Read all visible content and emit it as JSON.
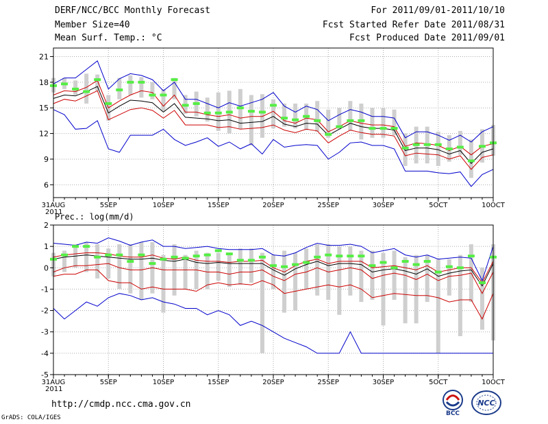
{
  "header": {
    "title": "DERF/NCC/BCC Monthly Forecast",
    "member_size": "Member Size=40",
    "variable": "Mean Surf. Temp.: °C",
    "forecast_for": "For 2011/09/01-2011/10/10",
    "started": "Fcst Started Refer Date 2011/08/31",
    "produced": "Fcst Produced Date 2011/09/01"
  },
  "footer": {
    "url": "http://cmdp.ncc.cma.gov.cn",
    "grads": "GrADS: COLA/IGES",
    "logo1_text": "BCC",
    "logo2_text": "NCC"
  },
  "chart_data": [
    {
      "type": "line",
      "title": "Mean Surf. Temp.: °C",
      "xlabel": "",
      "ylabel": "",
      "ylim": [
        4.5,
        22
      ],
      "yticks": [
        6,
        9,
        12,
        15,
        18,
        21
      ],
      "xlim": [
        0,
        40
      ],
      "x_tick_positions": [
        0,
        5,
        10,
        15,
        20,
        25,
        30,
        35,
        40
      ],
      "x_tick_labels": [
        "31AUG",
        "5SEP",
        "10SEP",
        "15SEP",
        "20SEP",
        "25SEP",
        "30SEP",
        "5OCT",
        "10OCT"
      ],
      "x_tick_sublabel": "2011",
      "series": [
        {
          "name": "max",
          "color": "#0000cc",
          "values": [
            17.8,
            18.5,
            18.5,
            19.5,
            20.5,
            17.2,
            18.4,
            19,
            18.8,
            18.3,
            17,
            18,
            16,
            16,
            15.5,
            15,
            15.6,
            15.2,
            15.6,
            16,
            16.8,
            15.2,
            14.5,
            15.2,
            14.8,
            13.5,
            14.2,
            14.8,
            14.5,
            14,
            14,
            13.8,
            11.5,
            12.2,
            12.2,
            11.8,
            11.2,
            11.8,
            11,
            12.2,
            12.8
          ]
        },
        {
          "name": "upper",
          "color": "#cc0000",
          "values": [
            16.5,
            17,
            16.9,
            17.4,
            18.2,
            15,
            15.8,
            16.5,
            17,
            16.8,
            15.2,
            16.5,
            14.5,
            14.5,
            14.2,
            14,
            14.2,
            13.8,
            14,
            14,
            14.6,
            13.5,
            13.2,
            13.8,
            13.6,
            12.2,
            12.8,
            13.5,
            13.2,
            13,
            13,
            12.8,
            10.5,
            10.9,
            10.8,
            10.6,
            10,
            10.5,
            9.5,
            10.5,
            10.8
          ]
        },
        {
          "name": "mean",
          "color": "#000000",
          "values": [
            16.1,
            16.5,
            16.4,
            16.9,
            17.5,
            14.4,
            15.2,
            15.9,
            15.8,
            15.6,
            14.5,
            15.5,
            13.9,
            13.8,
            13.7,
            13.5,
            13.6,
            13.2,
            13.3,
            13.4,
            14,
            13.1,
            12.8,
            13.2,
            13.1,
            11.8,
            12.5,
            13.2,
            12.8,
            12.6,
            12.6,
            12.4,
            10,
            10.3,
            10.3,
            10.1,
            9.6,
            10,
            8.5,
            9.8,
            10.2
          ]
        },
        {
          "name": "lower",
          "color": "#cc0000",
          "values": [
            15.5,
            16,
            15.8,
            16.4,
            17,
            13.6,
            14.2,
            14.8,
            15,
            14.7,
            13.8,
            14.7,
            13,
            13,
            13,
            12.7,
            12.8,
            12.5,
            12.6,
            12.7,
            13,
            12.4,
            12.1,
            12.5,
            12.3,
            10.9,
            11.7,
            12.4,
            12.1,
            11.9,
            11.9,
            11.7,
            9.4,
            9.7,
            9.6,
            9.5,
            9,
            9.4,
            7.8,
            9.2,
            9.5
          ]
        },
        {
          "name": "min",
          "color": "#0000cc",
          "values": [
            14.8,
            14.2,
            12.5,
            12.6,
            13.5,
            10.2,
            9.8,
            11.8,
            11.8,
            11.8,
            12.5,
            11.3,
            10.6,
            11,
            11.5,
            10.5,
            11,
            10.2,
            10.8,
            9.6,
            11.3,
            10.4,
            10.6,
            10.7,
            10.6,
            9,
            9.8,
            10.9,
            11,
            10.6,
            10.6,
            10.2,
            7.6,
            7.6,
            7.6,
            7.4,
            7.3,
            7.5,
            5.8,
            7.2,
            7.8
          ]
        }
      ],
      "ensemble_box_low": [
        16.8,
        17.2,
        16.5,
        15.5,
        17,
        13.5,
        16,
        16.5,
        16.2,
        16,
        14.6,
        16,
        14.3,
        14,
        13.4,
        12.3,
        12,
        12.5,
        10.6,
        11.5,
        12.6,
        12.8,
        12.6,
        12.4,
        12.2,
        11.5,
        12.5,
        12.3,
        11.3,
        11.5,
        11.5,
        11.8,
        8.2,
        8.5,
        8.5,
        8.2,
        8.7,
        9.5,
        6.8,
        8.6,
        9.4
      ],
      "ensemble_box_high": [
        18.5,
        18.5,
        18.2,
        19,
        18.9,
        16.5,
        18.5,
        18.8,
        18.6,
        18,
        17.2,
        18.5,
        16.5,
        16.9,
        16.2,
        16.8,
        17,
        17.2,
        16.5,
        16.6,
        16,
        15.5,
        15.5,
        15.5,
        15.8,
        14.8,
        15,
        15.8,
        15.5,
        15,
        15,
        14.8,
        12,
        12.8,
        12.8,
        12.2,
        11.8,
        12.3,
        11.3,
        12.5,
        13
      ],
      "green_marks": [
        17.6,
        17.8,
        17.2,
        16.9,
        18.3,
        15.5,
        17.1,
        18,
        18,
        16.5,
        16.5,
        18.3,
        15.3,
        15.5,
        14.4,
        14.4,
        14.5,
        15,
        14.6,
        14.5,
        15.3,
        13.8,
        13.6,
        14,
        13.5,
        11.9,
        12.8,
        13.5,
        13.5,
        12.6,
        12.6,
        12.6,
        10.3,
        10.7,
        10.7,
        10.7,
        10.2,
        10.4,
        8.8,
        10.5,
        10.9
      ]
    },
    {
      "type": "line",
      "title": "Prec.: log(mm/d)",
      "xlabel": "",
      "ylabel": "",
      "ylim": [
        -5,
        2
      ],
      "yticks": [
        -5,
        -4,
        -3,
        -2,
        -1,
        0,
        1,
        2
      ],
      "xlim": [
        0,
        40
      ],
      "x_tick_positions": [
        0,
        5,
        10,
        15,
        20,
        25,
        30,
        35,
        40
      ],
      "x_tick_labels": [
        "31AUG",
        "5SEP",
        "10SEP",
        "15SEP",
        "20SEP",
        "25SEP",
        "30SEP",
        "5OCT",
        "10OCT"
      ],
      "x_tick_sublabel": "2011",
      "series": [
        {
          "name": "max",
          "color": "#0000cc",
          "values": [
            1.15,
            1.1,
            1.05,
            1.2,
            1.15,
            1.4,
            1.25,
            1.05,
            1.2,
            1.3,
            1,
            1,
            0.9,
            0.95,
            1,
            0.9,
            0.85,
            0.85,
            0.85,
            0.9,
            0.6,
            0.55,
            0.7,
            0.95,
            1.15,
            1.05,
            1.05,
            1.1,
            1,
            0.7,
            0.8,
            0.9,
            0.6,
            0.5,
            0.6,
            0.4,
            0.45,
            0.5,
            0.45,
            -0.6,
            1
          ]
        },
        {
          "name": "upper",
          "color": "#cc0000",
          "values": [
            0.5,
            0.6,
            0.65,
            0.7,
            0.7,
            0.65,
            0.55,
            0.5,
            0.5,
            0.6,
            0.45,
            0.4,
            0.5,
            0.35,
            0.3,
            0.3,
            0.25,
            0.3,
            0.3,
            0.35,
            0,
            -0.2,
            0.1,
            0.3,
            0.4,
            0.2,
            0.3,
            0.3,
            0.3,
            0,
            0.05,
            0.1,
            0,
            -0.1,
            0.1,
            -0.2,
            -0.1,
            0,
            0,
            -0.7,
            0.3
          ]
        },
        {
          "name": "mean",
          "color": "#000000",
          "values": [
            0.4,
            0.5,
            0.55,
            0.6,
            0.55,
            0.5,
            0.45,
            0.4,
            0.4,
            0.45,
            0.35,
            0.3,
            0.4,
            0.25,
            0.2,
            0.25,
            0.2,
            0.2,
            0.2,
            0.2,
            -0.1,
            -0.35,
            -0.05,
            0.15,
            0.3,
            0.1,
            0.2,
            0.2,
            0.15,
            -0.2,
            -0.1,
            -0.05,
            -0.15,
            -0.3,
            -0.05,
            -0.4,
            -0.25,
            -0.15,
            -0.1,
            -0.85,
            0.2
          ]
        },
        {
          "name": "lower",
          "color": "#cc0000",
          "values": [
            -0.2,
            0,
            0.1,
            0.1,
            0.15,
            0.2,
            0,
            -0.1,
            -0.1,
            0,
            -0.1,
            -0.1,
            -0.1,
            -0.1,
            -0.2,
            -0.2,
            -0.3,
            -0.2,
            -0.2,
            -0.1,
            -0.4,
            -0.6,
            -0.3,
            -0.2,
            0,
            -0.2,
            -0.1,
            0,
            -0.1,
            -0.5,
            -0.35,
            -0.25,
            -0.35,
            -0.55,
            -0.3,
            -0.6,
            -0.4,
            -0.35,
            -0.25,
            -1.2,
            -0.2
          ]
        },
        {
          "name": "lower2",
          "color": "#cc0000",
          "values": [
            -0.4,
            -0.3,
            -0.3,
            -0.1,
            -0.1,
            -0.6,
            -0.7,
            -0.7,
            -1,
            -0.9,
            -1,
            -1,
            -1,
            -1.1,
            -0.8,
            -0.7,
            -0.8,
            -0.75,
            -0.8,
            -0.6,
            -0.8,
            -1.2,
            -1.1,
            -1,
            -0.9,
            -0.8,
            -0.9,
            -0.8,
            -1,
            -1.4,
            -1.3,
            -1.2,
            -1.25,
            -1.3,
            -1.3,
            -1.4,
            -1.6,
            -1.5,
            -1.5,
            -2.4,
            -1.2
          ]
        },
        {
          "name": "min",
          "color": "#0000cc",
          "values": [
            -1.9,
            -2.4,
            -2,
            -1.6,
            -1.8,
            -1.4,
            -1.2,
            -1.3,
            -1.5,
            -1.4,
            -1.6,
            -1.7,
            -1.9,
            -1.9,
            -2.2,
            -2,
            -2.2,
            -2.7,
            -2.5,
            -2.7,
            -3,
            -3.3,
            -3.5,
            -3.7,
            -4,
            -4,
            -4,
            -3,
            -4,
            -4,
            -4,
            -4,
            -4,
            -4,
            -4,
            -4,
            -4,
            -4,
            -4,
            -4,
            -4
          ]
        }
      ],
      "ensemble_box_low": [
        -0.4,
        -0.2,
        0,
        -0.2,
        -0.5,
        -0.5,
        -1,
        -1.2,
        -1.5,
        -1.2,
        -2.1,
        -1.3,
        -1,
        -1,
        -1,
        -0.6,
        -0.9,
        -0.8,
        -0.7,
        -4,
        -1,
        -2.1,
        -2,
        -1,
        -1.3,
        -1.5,
        -2.2,
        -1.3,
        -1.6,
        -1.5,
        -2.7,
        -1.5,
        -2.6,
        -2.6,
        -1.6,
        -4,
        -1.3,
        -3.2,
        -1.6,
        -2.9,
        -3.4
      ],
      "ensemble_box_high": [
        0.7,
        0.8,
        1.1,
        1.2,
        1.1,
        0.9,
        1.1,
        1.1,
        1.2,
        1.2,
        0.6,
        1.1,
        0.6,
        0.8,
        0.7,
        0.7,
        0.7,
        0.9,
        0.9,
        0.7,
        0.6,
        0.8,
        0.7,
        0.9,
        1.1,
        1.1,
        1,
        1,
        0.8,
        0.8,
        0.7,
        0.8,
        0.5,
        0.6,
        0.6,
        0.4,
        0.4,
        0.6,
        1.1,
        0,
        1.1
      ],
      "green_marks": [
        0.4,
        0.6,
        1,
        1,
        0.5,
        0.6,
        0.6,
        0.3,
        0.6,
        0.2,
        0.4,
        0.5,
        0.45,
        0.55,
        0.6,
        0.8,
        0.65,
        0.35,
        0.35,
        0.5,
        0.1,
        0.05,
        0.15,
        0.25,
        0.5,
        0.6,
        0.55,
        0.55,
        0.55,
        0.1,
        0.25,
        0,
        0.3,
        0.15,
        0.3,
        -0.2,
        0.05,
        0,
        0.55,
        -0.7,
        0.5
      ]
    }
  ]
}
